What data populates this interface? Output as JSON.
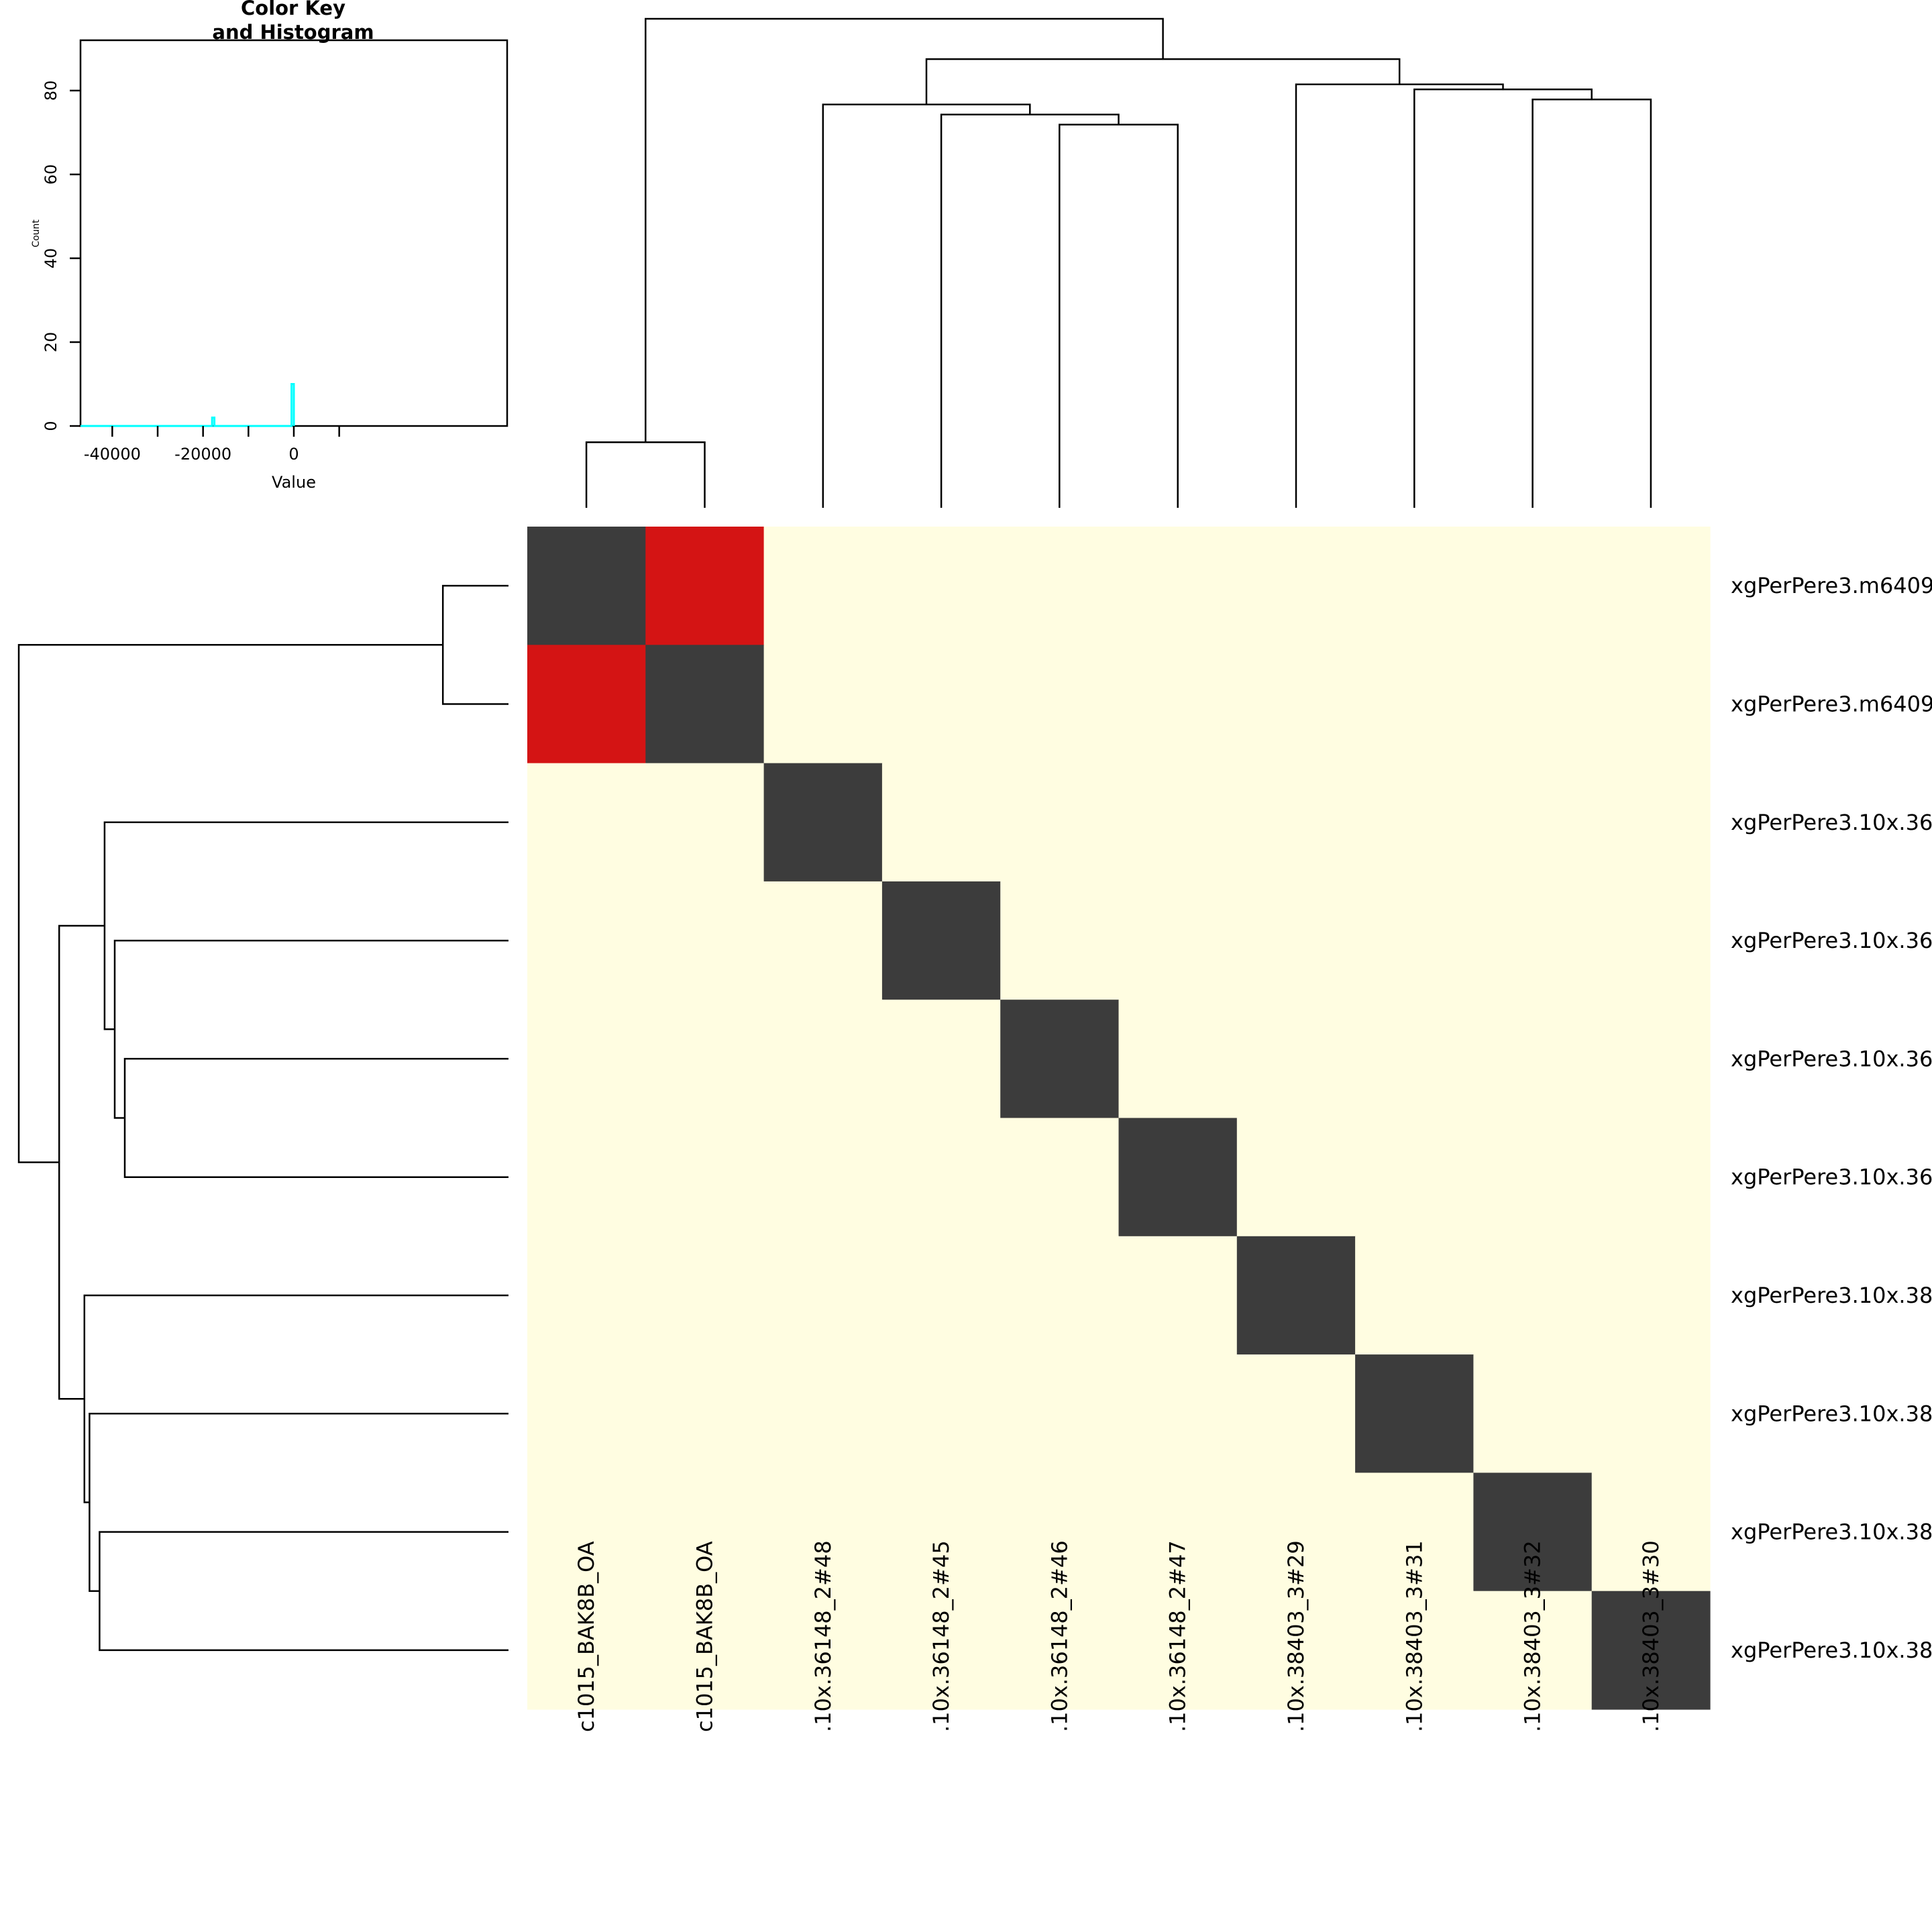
{
  "chart_data": [
    {
      "type": "heatmap",
      "title": "",
      "xlabel": "",
      "ylabel": "",
      "columns": [
        "c1015_BAK8B_OA",
        "c1015_BAK8B_OA",
        ".10x.36148_2#48",
        ".10x.36148_2#45",
        ".10x.36148_2#46",
        ".10x.36148_2#47",
        ".10x.38403_3#29",
        ".10x.38403_3#31",
        ".10x.38403_3#32",
        ".10x.38403_3#30"
      ],
      "rows": [
        "xgPerPere3.m6409",
        "xgPerPere3.m6409",
        "xgPerPere3.10x.36",
        "xgPerPere3.10x.36",
        "xgPerPere3.10x.36",
        "xgPerPere3.10x.36",
        "xgPerPere3.10x.38",
        "xgPerPere3.10x.38",
        "xgPerPere3.10x.38",
        "xgPerPere3.10x.38"
      ],
      "levels": [
        [
          2,
          1,
          0,
          0,
          0,
          0,
          0,
          0,
          0,
          0
        ],
        [
          1,
          2,
          0,
          0,
          0,
          0,
          0,
          0,
          0,
          0
        ],
        [
          0,
          0,
          2,
          0,
          0,
          0,
          0,
          0,
          0,
          0
        ],
        [
          0,
          0,
          0,
          2,
          0,
          0,
          0,
          0,
          0,
          0
        ],
        [
          0,
          0,
          0,
          0,
          2,
          0,
          0,
          0,
          0,
          0
        ],
        [
          0,
          0,
          0,
          0,
          0,
          2,
          0,
          0,
          0,
          0
        ],
        [
          0,
          0,
          0,
          0,
          0,
          0,
          2,
          0,
          0,
          0
        ],
        [
          0,
          0,
          0,
          0,
          0,
          0,
          0,
          2,
          0,
          0
        ],
        [
          0,
          0,
          0,
          0,
          0,
          0,
          0,
          0,
          2,
          0
        ],
        [
          0,
          0,
          0,
          0,
          0,
          0,
          0,
          0,
          0,
          2
        ]
      ],
      "palette": [
        "#fffde1",
        "#d41414",
        "#3c3c3c"
      ],
      "grid": false,
      "column_dendrogram": {
        "merges": [
          [
            0,
            1,
            13
          ],
          [
            4,
            5,
            76
          ],
          [
            3,
            "m2",
            78
          ],
          [
            2,
            "m3",
            80
          ],
          [
            8,
            9,
            81
          ],
          [
            7,
            "m5",
            83
          ],
          [
            6,
            "m6",
            84
          ],
          [
            "m4",
            "m7",
            89
          ],
          [
            "m1",
            "m8",
            97
          ]
        ]
      },
      "row_dendrogram": {
        "merges": [
          [
            0,
            1,
            13
          ],
          [
            4,
            5,
            76
          ],
          [
            3,
            "m2",
            78
          ],
          [
            2,
            "m3",
            80
          ],
          [
            8,
            9,
            81
          ],
          [
            7,
            "m5",
            83
          ],
          [
            6,
            "m6",
            84
          ],
          [
            "m4",
            "m7",
            89
          ],
          [
            "m1",
            "m8",
            97
          ]
        ]
      }
    },
    {
      "type": "area",
      "title": "Color Key\nand Histogram",
      "title_lines": [
        "Color Key",
        "and Histogram"
      ],
      "xlabel": "Value",
      "ylabel": "Count",
      "xlim": [
        -47000,
        47000
      ],
      "ylim": [
        0,
        92
      ],
      "xticks": [
        -40000,
        -20000,
        0
      ],
      "xticks_unlabeled": [
        -30000,
        -10000,
        10000
      ],
      "yticks": [
        0,
        20,
        40,
        60,
        80
      ],
      "histogram_color": "#00ffff",
      "histogram_points": [
        {
          "x": -47000,
          "y": 0
        },
        {
          "x": -18000,
          "y": 0
        },
        {
          "x": -18000,
          "y": 2
        },
        {
          "x": -17500,
          "y": 2
        },
        {
          "x": -17500,
          "y": 0
        },
        {
          "x": -500,
          "y": 0
        },
        {
          "x": -500,
          "y": 10
        },
        {
          "x": 0,
          "y": 10
        },
        {
          "x": 0,
          "y": 0
        }
      ]
    }
  ]
}
